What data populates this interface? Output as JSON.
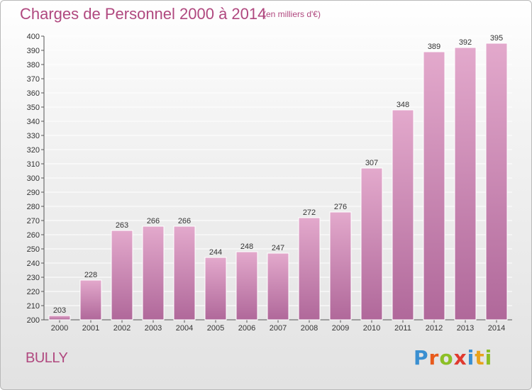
{
  "title": "Charges de Personnel 2000 à 2014",
  "subtitle": "(en milliers d'€)",
  "location": "BULLY",
  "brand": {
    "text": "Proxiti",
    "letters": [
      "P",
      "r",
      "o",
      "x",
      "i",
      "t",
      "i"
    ],
    "colors": [
      "#3a8fd1",
      "#e85a1c",
      "#8cbf26",
      "#e03a2f",
      "#3a8fd1",
      "#e8a21c",
      "#8cbf26"
    ]
  },
  "colors": {
    "accent": "#b0487f",
    "bar_top": "#e3a9cc",
    "bar_bottom": "#b0689a"
  },
  "chart_data": {
    "type": "bar",
    "categories": [
      "2000",
      "2001",
      "2002",
      "2003",
      "2004",
      "2005",
      "2006",
      "2007",
      "2008",
      "2009",
      "2010",
      "2011",
      "2012",
      "2013",
      "2014"
    ],
    "values": [
      203,
      228,
      263,
      266,
      266,
      244,
      248,
      247,
      272,
      276,
      307,
      348,
      389,
      392,
      395
    ],
    "title": "Charges de Personnel 2000 à 2014",
    "xlabel": "",
    "ylabel": "",
    "ylim": [
      200,
      400
    ],
    "yticks": [
      200,
      210,
      220,
      230,
      240,
      250,
      260,
      270,
      280,
      290,
      300,
      310,
      320,
      330,
      340,
      350,
      360,
      370,
      380,
      390,
      400
    ],
    "grid": true,
    "legend": "none"
  }
}
